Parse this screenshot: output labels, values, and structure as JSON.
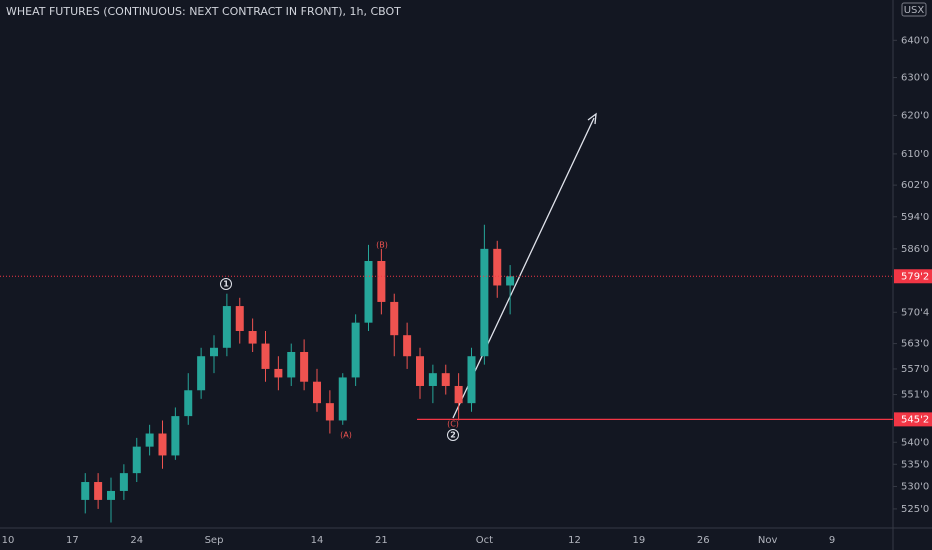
{
  "chart_data": {
    "type": "candlestick",
    "title": "WHEAT FUTURES (CONTINUOUS: NEXT CONTRACT IN FRONT), 1h, CBOT",
    "currency": "USX",
    "categories": [
      "10",
      null,
      null,
      null,
      null,
      "17",
      null,
      null,
      null,
      null,
      "24",
      null,
      null,
      null,
      null,
      null,
      "Sep",
      null,
      null,
      null,
      null,
      null,
      null,
      null,
      "14",
      null,
      null,
      null,
      null,
      "21",
      null,
      null,
      null,
      null,
      null,
      null,
      null,
      "Oct",
      null,
      null,
      null,
      null,
      null,
      null,
      "12",
      null,
      null,
      null,
      null,
      "19",
      null,
      null,
      null,
      null,
      "26",
      null,
      null,
      null,
      null,
      "Nov",
      null,
      null,
      null,
      null,
      "9"
    ],
    "open": [
      null,
      null,
      null,
      null,
      null,
      null,
      527,
      531,
      527,
      529,
      533,
      539,
      542,
      537,
      546,
      552,
      560,
      562,
      572,
      566,
      563,
      557,
      555,
      561,
      554,
      549,
      545,
      555,
      568,
      583,
      573,
      565,
      560,
      553,
      556,
      553,
      549,
      560,
      586,
      577,
      null,
      null,
      null,
      null,
      null,
      null,
      null,
      null,
      null,
      null,
      null,
      null,
      null,
      null,
      null,
      null,
      null,
      null,
      null,
      null,
      null,
      null,
      null,
      null,
      null
    ],
    "high": [
      null,
      null,
      null,
      null,
      null,
      null,
      533,
      533,
      532,
      535,
      541,
      544,
      545,
      548,
      556,
      562,
      565,
      575,
      574,
      569,
      566,
      560,
      563,
      564,
      557,
      552,
      556,
      570,
      587,
      586,
      575,
      568,
      562,
      558,
      558,
      556,
      562,
      592,
      588,
      582,
      null,
      null,
      null,
      null,
      null,
      null,
      null,
      null,
      null,
      null,
      null,
      null,
      null,
      null,
      null,
      null,
      null,
      null,
      null,
      null,
      null,
      null,
      null,
      null,
      null
    ],
    "low": [
      null,
      null,
      null,
      null,
      null,
      null,
      524,
      525,
      522,
      527,
      531,
      537,
      534,
      536,
      544,
      550,
      556,
      560,
      563,
      561,
      554,
      552,
      553,
      552,
      547,
      542,
      544,
      553,
      566,
      570,
      560,
      557,
      550,
      549,
      551,
      545,
      547,
      558,
      574,
      570,
      null,
      null,
      null,
      null,
      null,
      null,
      null,
      null,
      null,
      null,
      null,
      null,
      null,
      null,
      null,
      null,
      null,
      null,
      null,
      null,
      null,
      null,
      null,
      null,
      null
    ],
    "close": [
      null,
      null,
      null,
      null,
      null,
      null,
      531,
      527,
      529,
      533,
      539,
      542,
      537,
      546,
      552,
      560,
      562,
      572,
      566,
      563,
      557,
      555,
      561,
      554,
      549,
      545,
      555,
      568,
      583,
      573,
      565,
      560,
      553,
      556,
      553,
      549,
      560,
      586,
      577,
      579.25,
      null,
      null,
      null,
      null,
      null,
      null,
      null,
      null,
      null,
      null,
      null,
      null,
      null,
      null,
      null,
      null,
      null,
      null,
      null,
      null,
      null,
      null,
      null,
      null,
      null
    ],
    "up_color": "#26a69a",
    "down_color": "#ef5350",
    "log_scale": true,
    "ylim": [
      521,
      651
    ],
    "yticks": [
      {
        "value": 640,
        "label": "640'0"
      },
      {
        "value": 630,
        "label": "630'0"
      },
      {
        "value": 620,
        "label": "620'0"
      },
      {
        "value": 610,
        "label": "610'0"
      },
      {
        "value": 602,
        "label": "602'0"
      },
      {
        "value": 594,
        "label": "594'0"
      },
      {
        "value": 586,
        "label": "586'0"
      },
      {
        "value": 570.5,
        "label": "570'4"
      },
      {
        "value": 563,
        "label": "563'0"
      },
      {
        "value": 557,
        "label": "557'0"
      },
      {
        "value": 551,
        "label": "551'0"
      },
      {
        "value": 540,
        "label": "540'0"
      },
      {
        "value": 535,
        "label": "535'0"
      },
      {
        "value": 530,
        "label": "530'0"
      },
      {
        "value": 525,
        "label": "525'0"
      }
    ],
    "last_price": {
      "value": 579.25,
      "label": "579'2",
      "color": "#f23645"
    },
    "price_line": {
      "value": 545.25,
      "label": "545'2",
      "color": "#f23645"
    },
    "annotations": [
      "1",
      "(A)",
      "(B)",
      "(C)",
      "2"
    ]
  }
}
